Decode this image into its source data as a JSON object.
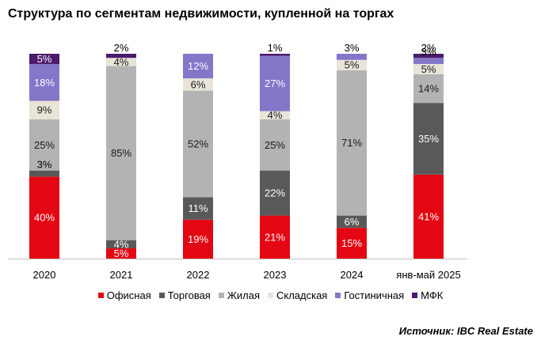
{
  "chart_data": {
    "type": "bar",
    "stacked": true,
    "title": "Структура по сегментам недвижимости, купленной на торгах",
    "categories": [
      "2020",
      "2021",
      "2022",
      "2023",
      "2024",
      "янв-май 2025"
    ],
    "series": [
      {
        "name": "Офисная",
        "color": "#e30613",
        "values": [
          40,
          5,
          19,
          21,
          15,
          41
        ],
        "labels": [
          "40%",
          "5%",
          "19%",
          "21%",
          "15%",
          "41%"
        ]
      },
      {
        "name": "Торговая",
        "color": "#595959",
        "values": [
          3,
          4,
          11,
          22,
          6,
          35
        ],
        "labels": [
          "3%",
          "4%",
          "11%",
          "22%",
          "6%",
          "35%"
        ]
      },
      {
        "name": "Жилая",
        "color": "#b3b3b3",
        "values": [
          25,
          85,
          52,
          25,
          71,
          14
        ],
        "labels": [
          "25%",
          "85%",
          "52%",
          "25%",
          "71%",
          "14%"
        ]
      },
      {
        "name": "Складская",
        "color": "#e8e4d8",
        "values": [
          9,
          4,
          6,
          4,
          5,
          5
        ],
        "labels": [
          "9%",
          "4%",
          "6%",
          "4%",
          "5%",
          "5%"
        ]
      },
      {
        "name": "Гостиничная",
        "color": "#8476c9",
        "values": [
          18,
          0,
          12,
          27,
          3,
          3
        ],
        "labels": [
          "18%",
          "",
          "12%",
          "27%",
          "3%",
          "3%"
        ]
      },
      {
        "name": "МФК",
        "color": "#4a1a6b",
        "values": [
          5,
          2,
          0,
          1,
          0,
          2
        ],
        "labels": [
          "5%",
          "2%",
          "",
          "1%",
          "",
          "2%"
        ]
      }
    ],
    "ylim": [
      0,
      100
    ],
    "legend_position": "bottom",
    "grid": false
  },
  "source": "Источник: IBC Real Estate"
}
